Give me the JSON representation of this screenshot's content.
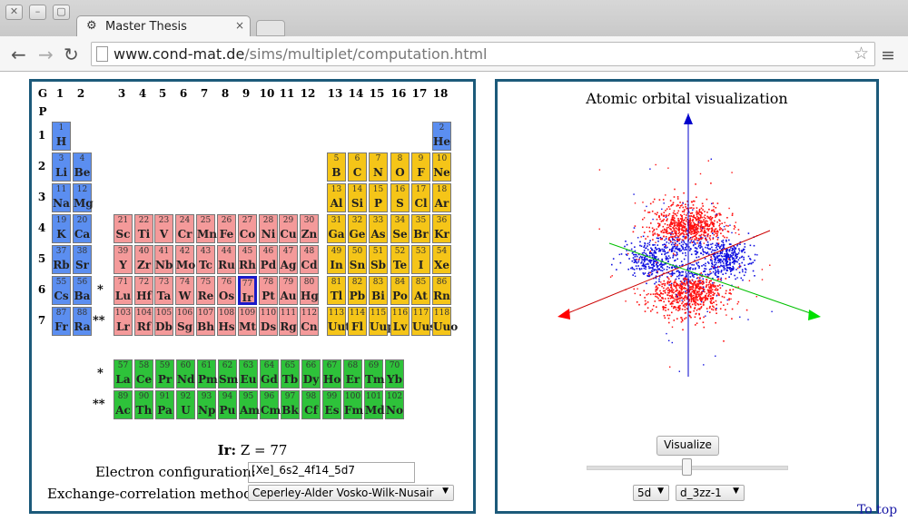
{
  "browser": {
    "tab_title": "Master Thesis",
    "tab_close": "×",
    "url_host": "www.cond-mat.de",
    "url_path": "/sims/multiplet/computation.html"
  },
  "periodic_table": {
    "group_header_label": "G",
    "period_header_label": "P",
    "groups": [
      "1",
      "2",
      "3",
      "4",
      "5",
      "6",
      "7",
      "8",
      "9",
      "10",
      "11",
      "12",
      "13",
      "14",
      "15",
      "16",
      "17",
      "18"
    ],
    "periods": [
      "1",
      "2",
      "3",
      "4",
      "5",
      "6",
      "7"
    ],
    "selected": "Ir",
    "colors": {
      "s_block": "#5b8ef0",
      "d_block": "#f49a9a",
      "p_block": "#f5c518",
      "f_block": "#2ec23a"
    },
    "elements": [
      {
        "z": "1",
        "sym": "H",
        "b": "s"
      },
      {
        "z": "2",
        "sym": "He",
        "b": "s"
      },
      {
        "z": "3",
        "sym": "Li",
        "b": "s"
      },
      {
        "z": "4",
        "sym": "Be",
        "b": "s"
      },
      {
        "z": "5",
        "sym": "B",
        "b": "p"
      },
      {
        "z": "6",
        "sym": "C",
        "b": "p"
      },
      {
        "z": "7",
        "sym": "N",
        "b": "p"
      },
      {
        "z": "8",
        "sym": "O",
        "b": "p"
      },
      {
        "z": "9",
        "sym": "F",
        "b": "p"
      },
      {
        "z": "10",
        "sym": "Ne",
        "b": "p"
      },
      {
        "z": "11",
        "sym": "Na",
        "b": "s"
      },
      {
        "z": "12",
        "sym": "Mg",
        "b": "s"
      },
      {
        "z": "13",
        "sym": "Al",
        "b": "p"
      },
      {
        "z": "14",
        "sym": "Si",
        "b": "p"
      },
      {
        "z": "15",
        "sym": "P",
        "b": "p"
      },
      {
        "z": "16",
        "sym": "S",
        "b": "p"
      },
      {
        "z": "17",
        "sym": "Cl",
        "b": "p"
      },
      {
        "z": "18",
        "sym": "Ar",
        "b": "p"
      },
      {
        "z": "19",
        "sym": "K",
        "b": "s"
      },
      {
        "z": "20",
        "sym": "Ca",
        "b": "s"
      },
      {
        "z": "21",
        "sym": "Sc",
        "b": "d"
      },
      {
        "z": "22",
        "sym": "Ti",
        "b": "d"
      },
      {
        "z": "23",
        "sym": "V",
        "b": "d"
      },
      {
        "z": "24",
        "sym": "Cr",
        "b": "d"
      },
      {
        "z": "25",
        "sym": "Mn",
        "b": "d"
      },
      {
        "z": "26",
        "sym": "Fe",
        "b": "d"
      },
      {
        "z": "27",
        "sym": "Co",
        "b": "d"
      },
      {
        "z": "28",
        "sym": "Ni",
        "b": "d"
      },
      {
        "z": "29",
        "sym": "Cu",
        "b": "d"
      },
      {
        "z": "30",
        "sym": "Zn",
        "b": "d"
      },
      {
        "z": "31",
        "sym": "Ga",
        "b": "p"
      },
      {
        "z": "32",
        "sym": "Ge",
        "b": "p"
      },
      {
        "z": "33",
        "sym": "As",
        "b": "p"
      },
      {
        "z": "34",
        "sym": "Se",
        "b": "p"
      },
      {
        "z": "35",
        "sym": "Br",
        "b": "p"
      },
      {
        "z": "36",
        "sym": "Kr",
        "b": "p"
      },
      {
        "z": "37",
        "sym": "Rb",
        "b": "s"
      },
      {
        "z": "38",
        "sym": "Sr",
        "b": "s"
      },
      {
        "z": "39",
        "sym": "Y",
        "b": "d"
      },
      {
        "z": "40",
        "sym": "Zr",
        "b": "d"
      },
      {
        "z": "41",
        "sym": "Nb",
        "b": "d"
      },
      {
        "z": "42",
        "sym": "Mo",
        "b": "d"
      },
      {
        "z": "43",
        "sym": "Tc",
        "b": "d"
      },
      {
        "z": "44",
        "sym": "Ru",
        "b": "d"
      },
      {
        "z": "45",
        "sym": "Rh",
        "b": "d"
      },
      {
        "z": "46",
        "sym": "Pd",
        "b": "d"
      },
      {
        "z": "47",
        "sym": "Ag",
        "b": "d"
      },
      {
        "z": "48",
        "sym": "Cd",
        "b": "d"
      },
      {
        "z": "49",
        "sym": "In",
        "b": "p"
      },
      {
        "z": "50",
        "sym": "Sn",
        "b": "p"
      },
      {
        "z": "51",
        "sym": "Sb",
        "b": "p"
      },
      {
        "z": "52",
        "sym": "Te",
        "b": "p"
      },
      {
        "z": "53",
        "sym": "I",
        "b": "p"
      },
      {
        "z": "54",
        "sym": "Xe",
        "b": "p"
      },
      {
        "z": "55",
        "sym": "Cs",
        "b": "s"
      },
      {
        "z": "56",
        "sym": "Ba",
        "b": "s"
      },
      {
        "z": "71",
        "sym": "Lu",
        "b": "d"
      },
      {
        "z": "72",
        "sym": "Hf",
        "b": "d"
      },
      {
        "z": "73",
        "sym": "Ta",
        "b": "d"
      },
      {
        "z": "74",
        "sym": "W",
        "b": "d"
      },
      {
        "z": "75",
        "sym": "Re",
        "b": "d"
      },
      {
        "z": "76",
        "sym": "Os",
        "b": "d"
      },
      {
        "z": "77",
        "sym": "Ir",
        "b": "d"
      },
      {
        "z": "78",
        "sym": "Pt",
        "b": "d"
      },
      {
        "z": "79",
        "sym": "Au",
        "b": "d"
      },
      {
        "z": "80",
        "sym": "Hg",
        "b": "d"
      },
      {
        "z": "81",
        "sym": "Tl",
        "b": "p"
      },
      {
        "z": "82",
        "sym": "Pb",
        "b": "p"
      },
      {
        "z": "83",
        "sym": "Bi",
        "b": "p"
      },
      {
        "z": "84",
        "sym": "Po",
        "b": "p"
      },
      {
        "z": "85",
        "sym": "At",
        "b": "p"
      },
      {
        "z": "86",
        "sym": "Rn",
        "b": "p"
      },
      {
        "z": "87",
        "sym": "Fr",
        "b": "s"
      },
      {
        "z": "88",
        "sym": "Ra",
        "b": "s"
      },
      {
        "z": "103",
        "sym": "Lr",
        "b": "d"
      },
      {
        "z": "104",
        "sym": "Rf",
        "b": "d"
      },
      {
        "z": "105",
        "sym": "Db",
        "b": "d"
      },
      {
        "z": "106",
        "sym": "Sg",
        "b": "d"
      },
      {
        "z": "107",
        "sym": "Bh",
        "b": "d"
      },
      {
        "z": "108",
        "sym": "Hs",
        "b": "d"
      },
      {
        "z": "109",
        "sym": "Mt",
        "b": "d"
      },
      {
        "z": "110",
        "sym": "Ds",
        "b": "d"
      },
      {
        "z": "111",
        "sym": "Rg",
        "b": "d"
      },
      {
        "z": "112",
        "sym": "Cn",
        "b": "d"
      },
      {
        "z": "113",
        "sym": "Uut",
        "b": "p"
      },
      {
        "z": "114",
        "sym": "Fl",
        "b": "p"
      },
      {
        "z": "115",
        "sym": "Uup",
        "b": "p"
      },
      {
        "z": "116",
        "sym": "Lv",
        "b": "p"
      },
      {
        "z": "117",
        "sym": "Uus",
        "b": "p"
      },
      {
        "z": "118",
        "sym": "Uuo",
        "b": "p"
      }
    ],
    "lanthanides_marker": "*",
    "actinides_marker": "**",
    "lanthanides": [
      {
        "z": "57",
        "sym": "La"
      },
      {
        "z": "58",
        "sym": "Ce"
      },
      {
        "z": "59",
        "sym": "Pr"
      },
      {
        "z": "60",
        "sym": "Nd"
      },
      {
        "z": "61",
        "sym": "Pm"
      },
      {
        "z": "62",
        "sym": "Sm"
      },
      {
        "z": "63",
        "sym": "Eu"
      },
      {
        "z": "64",
        "sym": "Gd"
      },
      {
        "z": "65",
        "sym": "Tb"
      },
      {
        "z": "66",
        "sym": "Dy"
      },
      {
        "z": "67",
        "sym": "Ho"
      },
      {
        "z": "68",
        "sym": "Er"
      },
      {
        "z": "69",
        "sym": "Tm"
      },
      {
        "z": "70",
        "sym": "Yb"
      }
    ],
    "actinides": [
      {
        "z": "89",
        "sym": "Ac"
      },
      {
        "z": "90",
        "sym": "Th"
      },
      {
        "z": "91",
        "sym": "Pa"
      },
      {
        "z": "92",
        "sym": "U"
      },
      {
        "z": "93",
        "sym": "Np"
      },
      {
        "z": "94",
        "sym": "Pu"
      },
      {
        "z": "95",
        "sym": "Am"
      },
      {
        "z": "96",
        "sym": "Cm"
      },
      {
        "z": "97",
        "sym": "Bk"
      },
      {
        "z": "98",
        "sym": "Cf"
      },
      {
        "z": "99",
        "sym": "Es"
      },
      {
        "z": "100",
        "sym": "Fm"
      },
      {
        "z": "101",
        "sym": "Md"
      },
      {
        "z": "102",
        "sym": "No"
      }
    ]
  },
  "info": {
    "element_symbol": "Ir:",
    "z_text": "Z = 77",
    "ec_label": "Electron configuration:",
    "ec_value": "[Xe]_6s2_4f14_5d7",
    "xc_label": "Exchange-correlation method:",
    "xc_value": "Ceperley-Alder Vosko-Wilk-Nusair"
  },
  "viz": {
    "title": "Atomic orbital visualization",
    "button": "Visualize",
    "slider_fraction": 0.5,
    "shell_value": "5d",
    "orbital_value": "d_3zz-1",
    "colors": {
      "lobe": "#ff1010",
      "ring": "#1010e0",
      "axis_z": "#0000cc",
      "axis_x": "#cc0000",
      "axis_y": "#00cc00"
    }
  },
  "footer": {
    "to_top": "To top"
  }
}
